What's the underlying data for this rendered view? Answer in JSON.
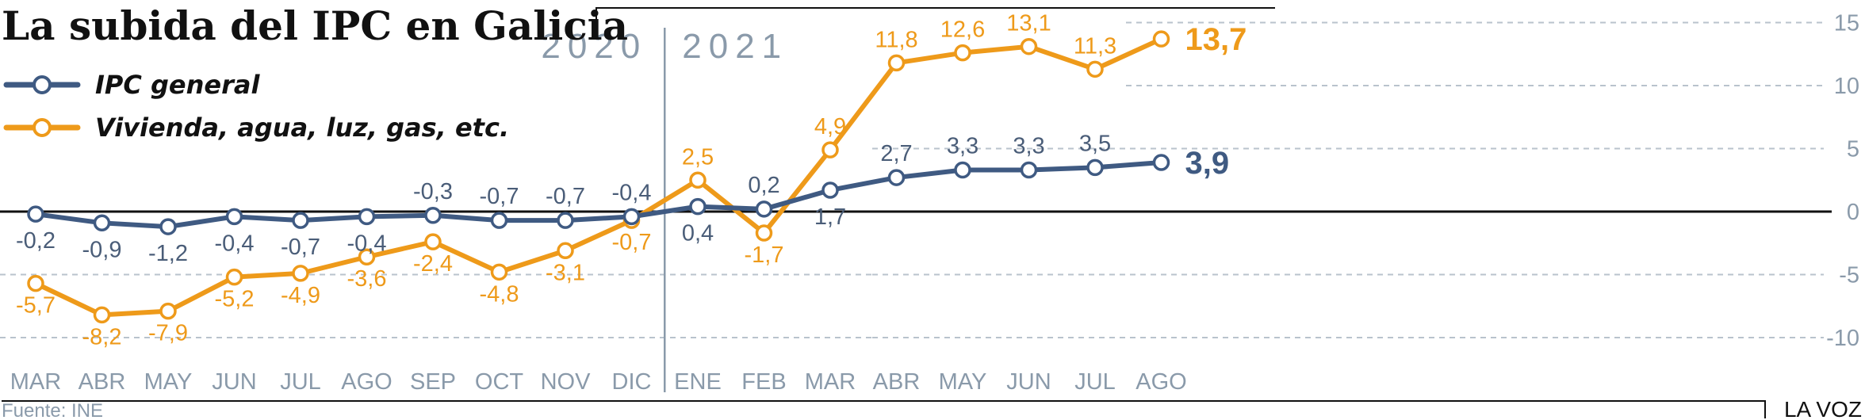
{
  "colors": {
    "general": "#3f5a82",
    "vivienda": "#ee9a1a",
    "grid": "#b9c3cd",
    "axis_text": "#8a9aaa"
  },
  "title": "La subida del IPC en Galicia",
  "years": [
    "2020",
    "2021"
  ],
  "legend": {
    "general": "IPC general",
    "vivienda": "Vivienda, agua, luz, gas, etc."
  },
  "source": "Fuente: INE",
  "brand": "LA VOZ",
  "chart_data": {
    "type": "line",
    "title": "La subida del IPC en Galicia",
    "categories": [
      "MAR",
      "ABR",
      "MAY",
      "JUN",
      "JUL",
      "AGO",
      "SEP",
      "OCT",
      "NOV",
      "DIC",
      "ENE",
      "FEB",
      "MAR",
      "ABR",
      "MAY",
      "JUN",
      "JUL",
      "AGO"
    ],
    "series": [
      {
        "name": "IPC general",
        "values": [
          -0.2,
          -0.9,
          -1.2,
          -0.4,
          -0.7,
          -0.4,
          -0.3,
          -0.7,
          -0.7,
          -0.4,
          0.4,
          0.2,
          1.7,
          2.7,
          3.3,
          3.3,
          3.5,
          3.9
        ],
        "labels": [
          "-0,2",
          "-0,9",
          "-1,2",
          "-0,4",
          "-0,7",
          "-0,4",
          "-0,3",
          "-0,7",
          "-0,7",
          "-0,4",
          "0,4",
          "0,2",
          "1,7",
          "2,7",
          "3,3",
          "3,3",
          "3,5",
          "3,9"
        ]
      },
      {
        "name": "Vivienda, agua, luz, gas, etc.",
        "values": [
          -5.7,
          -8.2,
          -7.9,
          -5.2,
          -4.9,
          -3.6,
          -2.4,
          -4.8,
          -3.1,
          -0.7,
          2.5,
          -1.7,
          4.9,
          11.8,
          12.6,
          13.1,
          11.3,
          13.7
        ],
        "labels": [
          "-5,7",
          "-8,2",
          "-7,9",
          "-5,2",
          "-4,9",
          "-3,6",
          "-2,4",
          "-4,8",
          "-3,1",
          "-0,7",
          "2,5",
          "-1,7",
          "4,9",
          "11,8",
          "12,6",
          "13,1",
          "11,3",
          "13,7"
        ]
      }
    ],
    "year_split_after": "DIC",
    "y_ticks": [
      15,
      10,
      5,
      0,
      -5,
      -10
    ],
    "ylim": [
      -12,
      16
    ],
    "grid": "dashed horizontal",
    "legend_placement": "top-left"
  }
}
